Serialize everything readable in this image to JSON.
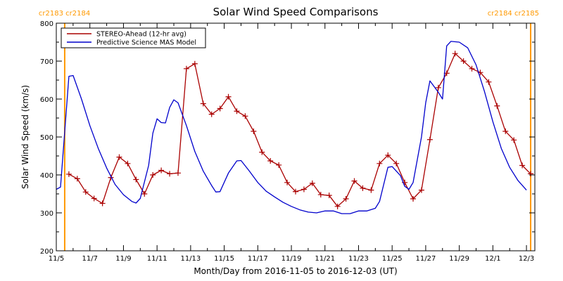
{
  "chart_data": {
    "type": "line",
    "title": "Solar Wind Speed Comparisons",
    "xlabel": "Month/Day from 2016-11-05 to 2016-12-03 (UT)",
    "ylabel": "Solar Wind Speed (km/s)",
    "xlim": [
      "2016-11-05",
      "2016-12-03 12:00"
    ],
    "ylim": [
      200,
      800
    ],
    "x_tick_labels": [
      "11/5",
      "11/7",
      "11/9",
      "11/11",
      "11/13",
      "11/15",
      "11/17",
      "11/19",
      "11/21",
      "11/23",
      "11/25",
      "11/27",
      "11/29",
      "12/1",
      "12/3"
    ],
    "y_tick_labels": [
      "200",
      "300",
      "400",
      "500",
      "600",
      "700",
      "800"
    ],
    "legend_position": "top-left",
    "carrington_markers": [
      {
        "date": "2016-11-05 12:00",
        "label": "cr2183 cr2184",
        "color": "#ff9900"
      },
      {
        "date": "2016-12-03 06:00",
        "label": "cr2184 cr2185",
        "color": "#ff9900"
      }
    ],
    "series": [
      {
        "name": "STEREO-Ahead (12-hr avg)",
        "color": "#aa0000",
        "marker": "+",
        "points": [
          [
            "2016-11-05 18:00",
            402
          ],
          [
            "2016-11-06 06:00",
            390
          ],
          [
            "2016-11-06 18:00",
            355
          ],
          [
            "2016-11-07 06:00",
            338
          ],
          [
            "2016-11-07 18:00",
            325
          ],
          [
            "2016-11-08 06:00",
            393
          ],
          [
            "2016-11-08 18:00",
            447
          ],
          [
            "2016-11-09 06:00",
            430
          ],
          [
            "2016-11-09 18:00",
            388
          ],
          [
            "2016-11-10 06:00",
            350
          ],
          [
            "2016-11-10 18:00",
            400
          ],
          [
            "2016-11-11 06:00",
            412
          ],
          [
            "2016-11-11 18:00",
            403
          ],
          [
            "2016-11-12 06:00",
            405
          ],
          [
            "2016-11-12 18:00",
            680
          ],
          [
            "2016-11-13 06:00",
            693
          ],
          [
            "2016-11-13 18:00",
            588
          ],
          [
            "2016-11-14 06:00",
            560
          ],
          [
            "2016-11-14 18:00",
            575
          ],
          [
            "2016-11-15 06:00",
            606
          ],
          [
            "2016-11-15 18:00",
            568
          ],
          [
            "2016-11-16 06:00",
            555
          ],
          [
            "2016-11-16 18:00",
            515
          ],
          [
            "2016-11-17 06:00",
            460
          ],
          [
            "2016-11-17 18:00",
            437
          ],
          [
            "2016-11-18 06:00",
            426
          ],
          [
            "2016-11-18 18:00",
            380
          ],
          [
            "2016-11-19 06:00",
            356
          ],
          [
            "2016-11-19 18:00",
            362
          ],
          [
            "2016-11-20 06:00",
            378
          ],
          [
            "2016-11-20 18:00",
            348
          ],
          [
            "2016-11-21 06:00",
            346
          ],
          [
            "2016-11-21 18:00",
            317
          ],
          [
            "2016-11-22 06:00",
            337
          ],
          [
            "2016-11-22 18:00",
            384
          ],
          [
            "2016-11-23 06:00",
            365
          ],
          [
            "2016-11-23 18:00",
            360
          ],
          [
            "2016-11-24 06:00",
            430
          ],
          [
            "2016-11-24 18:00",
            452
          ],
          [
            "2016-11-25 06:00",
            430
          ],
          [
            "2016-11-25 18:00",
            380
          ],
          [
            "2016-11-26 06:00",
            337
          ],
          [
            "2016-11-26 18:00",
            360
          ],
          [
            "2016-11-27 06:00",
            493
          ],
          [
            "2016-11-27 18:00",
            630
          ],
          [
            "2016-11-28 06:00",
            668
          ],
          [
            "2016-11-28 18:00",
            720
          ],
          [
            "2016-11-29 06:00",
            700
          ],
          [
            "2016-11-29 18:00",
            680
          ],
          [
            "2016-11-30 06:00",
            670
          ],
          [
            "2016-11-30 18:00",
            645
          ],
          [
            "2016-12-01 06:00",
            582
          ],
          [
            "2016-12-01 18:00",
            515
          ],
          [
            "2016-12-02 06:00",
            492
          ],
          [
            "2016-12-02 18:00",
            425
          ],
          [
            "2016-12-03 06:00",
            403
          ]
        ]
      },
      {
        "name": "Predictive Science MAS Model",
        "color": "#0000cc",
        "points": [
          [
            "2016-11-05 00:00",
            362
          ],
          [
            "2016-11-05 06:00",
            368
          ],
          [
            "2016-11-05 18:00",
            660
          ],
          [
            "2016-11-06 00:00",
            662
          ],
          [
            "2016-11-06 12:00",
            600
          ],
          [
            "2016-11-07 00:00",
            530
          ],
          [
            "2016-11-07 12:00",
            470
          ],
          [
            "2016-11-08 00:00",
            418
          ],
          [
            "2016-11-08 12:00",
            375
          ],
          [
            "2016-11-09 00:00",
            348
          ],
          [
            "2016-11-09 12:00",
            330
          ],
          [
            "2016-11-09 18:00",
            326
          ],
          [
            "2016-11-10 00:00",
            338
          ],
          [
            "2016-11-10 12:00",
            425
          ],
          [
            "2016-11-10 18:00",
            510
          ],
          [
            "2016-11-11 00:00",
            548
          ],
          [
            "2016-11-11 06:00",
            538
          ],
          [
            "2016-11-11 12:00",
            537
          ],
          [
            "2016-11-11 18:00",
            578
          ],
          [
            "2016-11-12 00:00",
            598
          ],
          [
            "2016-11-12 06:00",
            590
          ],
          [
            "2016-11-12 18:00",
            530
          ],
          [
            "2016-11-13 06:00",
            462
          ],
          [
            "2016-11-13 18:00",
            410
          ],
          [
            "2016-11-14 06:00",
            372
          ],
          [
            "2016-11-14 12:00",
            355
          ],
          [
            "2016-11-14 18:00",
            356
          ],
          [
            "2016-11-15 06:00",
            405
          ],
          [
            "2016-11-15 18:00",
            437
          ],
          [
            "2016-11-16 00:00",
            438
          ],
          [
            "2016-11-16 12:00",
            410
          ],
          [
            "2016-11-17 00:00",
            380
          ],
          [
            "2016-11-17 12:00",
            357
          ],
          [
            "2016-11-18 00:00",
            342
          ],
          [
            "2016-11-18 12:00",
            328
          ],
          [
            "2016-11-19 00:00",
            317
          ],
          [
            "2016-11-19 12:00",
            308
          ],
          [
            "2016-11-20 00:00",
            302
          ],
          [
            "2016-11-20 12:00",
            300
          ],
          [
            "2016-11-21 00:00",
            305
          ],
          [
            "2016-11-21 12:00",
            305
          ],
          [
            "2016-11-22 00:00",
            298
          ],
          [
            "2016-11-22 12:00",
            298
          ],
          [
            "2016-11-23 00:00",
            305
          ],
          [
            "2016-11-23 12:00",
            305
          ],
          [
            "2016-11-24 00:00",
            312
          ],
          [
            "2016-11-24 06:00",
            330
          ],
          [
            "2016-11-24 18:00",
            420
          ],
          [
            "2016-11-25 00:00",
            422
          ],
          [
            "2016-11-25 12:00",
            398
          ],
          [
            "2016-11-25 18:00",
            370
          ],
          [
            "2016-11-26 00:00",
            362
          ],
          [
            "2016-11-26 06:00",
            380
          ],
          [
            "2016-11-26 18:00",
            500
          ],
          [
            "2016-11-27 00:00",
            590
          ],
          [
            "2016-11-27 06:00",
            648
          ],
          [
            "2016-11-27 18:00",
            618
          ],
          [
            "2016-11-28 00:00",
            600
          ],
          [
            "2016-11-28 06:00",
            740
          ],
          [
            "2016-11-28 12:00",
            752
          ],
          [
            "2016-11-29 00:00",
            750
          ],
          [
            "2016-11-29 12:00",
            735
          ],
          [
            "2016-11-30 00:00",
            690
          ],
          [
            "2016-11-30 12:00",
            620
          ],
          [
            "2016-12-01 00:00",
            540
          ],
          [
            "2016-12-01 12:00",
            470
          ],
          [
            "2016-12-02 00:00",
            420
          ],
          [
            "2016-12-02 12:00",
            385
          ],
          [
            "2016-12-03 00:00",
            360
          ]
        ]
      }
    ]
  }
}
